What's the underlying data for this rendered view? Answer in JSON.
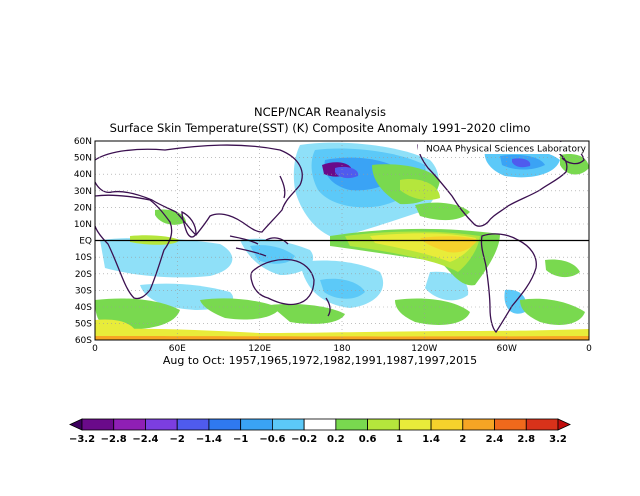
{
  "title": "NCEP/NCAR Reanalysis",
  "subtitle": "Surface Skin Temperature(SST) (K) Composite Anomaly 1991–2020 climo",
  "credit": "NOAA Physical Sciences Laboratory",
  "caption": "Aug to Oct: 1957,1965,1972,1982,1991,1987,1997,2015",
  "lat_labels": [
    "60N",
    "50N",
    "40N",
    "30N",
    "20N",
    "10N",
    "EQ",
    "10S",
    "20S",
    "30S",
    "40S",
    "50S",
    "60S"
  ],
  "lon_labels": [
    "0",
    "60E",
    "120E",
    "180",
    "120W",
    "60W",
    "0"
  ],
  "colorbar": {
    "labels": [
      "-3.2",
      "-2.8",
      "-2.4",
      "-2",
      "-1.4",
      "-1",
      "-0.6",
      "-0.2",
      "0.2",
      "0.6",
      "1",
      "1.4",
      "2",
      "2.4",
      "2.8",
      "3.2"
    ],
    "colors": [
      "#3d005e",
      "#6a0a8a",
      "#8f1fb5",
      "#7c3ee0",
      "#4f5bee",
      "#2f79f0",
      "#3aa3f5",
      "#5cc9f8",
      "#ffffff",
      "#79d94f",
      "#b5e63c",
      "#e8ec3a",
      "#f6d22c",
      "#f6a524",
      "#f0691c",
      "#d8321a",
      "#c00c0c"
    ]
  }
}
